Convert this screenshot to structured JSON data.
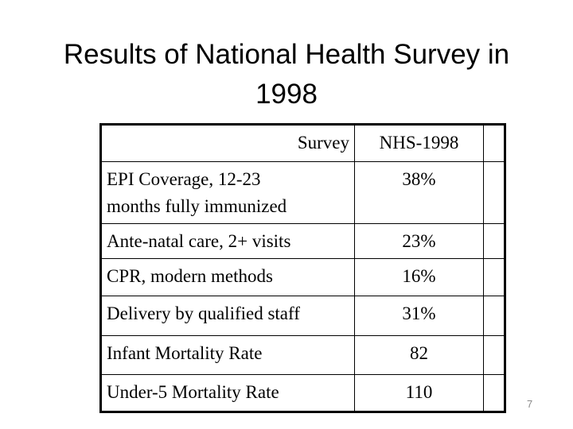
{
  "slide": {
    "title_line1": "Results of National Health Survey in",
    "title_line2": "1998",
    "page_number": "7"
  },
  "table": {
    "header": {
      "survey_label": "Survey",
      "nhs_label": "NHS-1998"
    },
    "rows": [
      {
        "indicator": "EPI Coverage, 12-23\nmonths fully immunized",
        "value": "38%"
      },
      {
        "indicator": "Ante-natal care, 2+ visits",
        "value": "23%"
      },
      {
        "indicator": "CPR, modern methods",
        "value": "16%"
      },
      {
        "indicator": "Delivery by qualified staff",
        "value": "31%"
      },
      {
        "indicator": "Infant Mortality Rate",
        "value": "82"
      },
      {
        "indicator": "Under-5 Mortality Rate",
        "value": "110"
      }
    ]
  },
  "colors": {
    "background": "#ffffff",
    "text": "#000000",
    "table_border": "#000000",
    "page_number": "#898989"
  }
}
